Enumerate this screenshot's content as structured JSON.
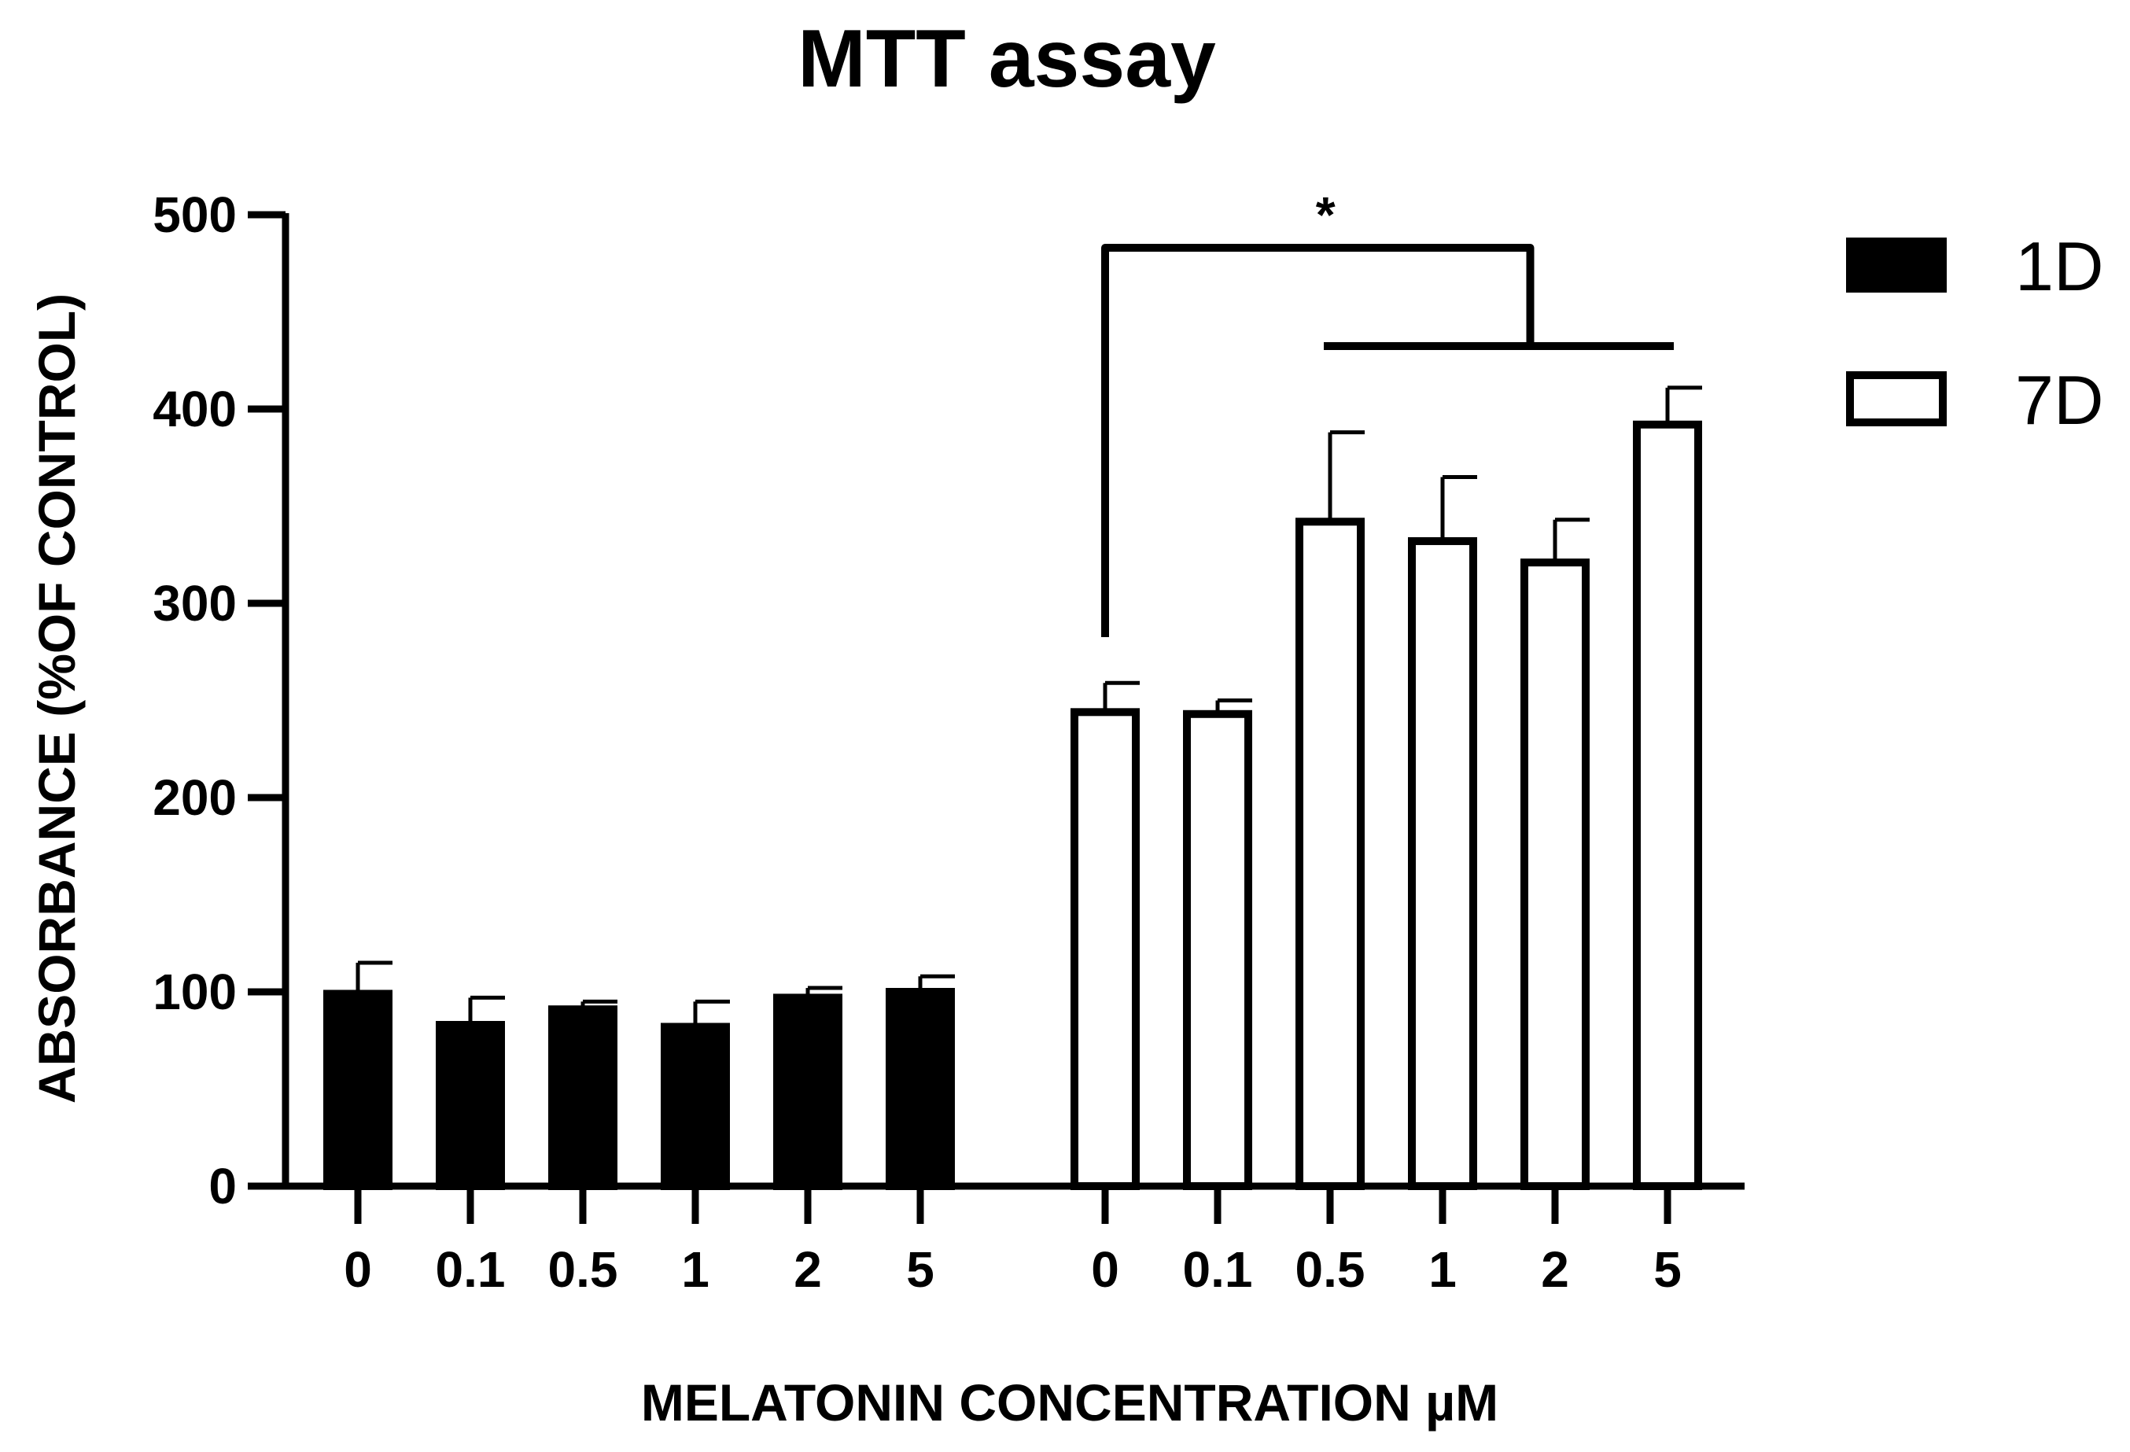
{
  "chart_data": {
    "type": "bar",
    "title": "MTT assay",
    "xlabel": "MELATONIN CONCENTRATION µM",
    "ylabel": "ABSORBANCE (%OF CONTROL)",
    "ylim": [
      0,
      500
    ],
    "yticks": [
      "0",
      "100",
      "200",
      "300",
      "400",
      "500"
    ],
    "legend_position": "top-right",
    "colors": {
      "axis": "#000000",
      "fill_1D": "#000000",
      "fill_7D": "#ffffff"
    },
    "groups": [
      {
        "name": "1D",
        "categories": [
          "0",
          "0.1",
          "0.5",
          "1",
          "2",
          "5"
        ],
        "values": [
          99,
          83,
          91,
          82,
          97,
          100
        ],
        "errors": [
          16,
          14,
          4,
          13,
          5,
          8
        ]
      },
      {
        "name": "7D",
        "categories": [
          "0",
          "0.1",
          "0.5",
          "1",
          "2",
          "5"
        ],
        "values": [
          244,
          243,
          342,
          332,
          321,
          392
        ],
        "errors": [
          15,
          7,
          46,
          33,
          22,
          19
        ]
      }
    ],
    "annotations": [
      {
        "text": "*",
        "from": "7D 0",
        "to": "7D 0.5–5"
      }
    ]
  }
}
